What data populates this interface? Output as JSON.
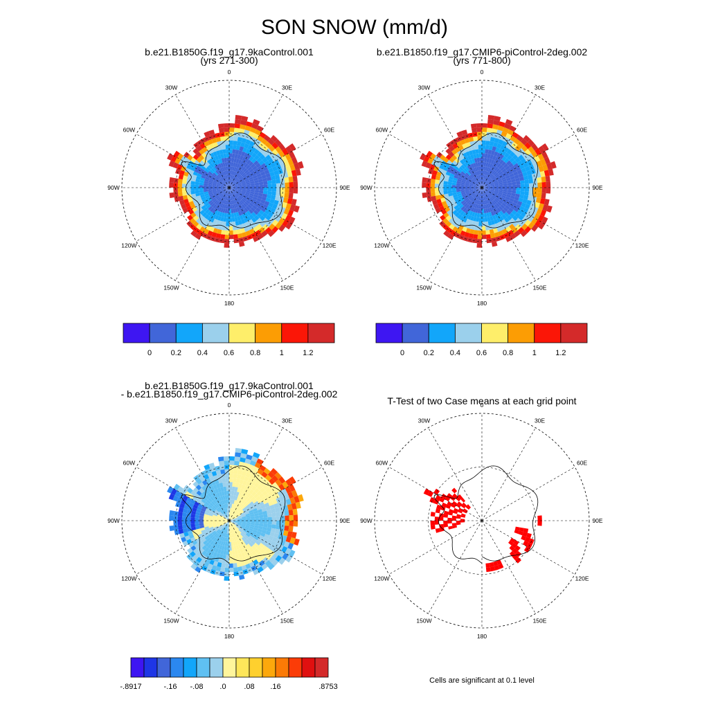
{
  "chart_data": [
    {
      "type": "polar-map",
      "figure_title": "SON SNOW (mm/d)",
      "panel": "case1",
      "title_lines": [
        "b.e21.B1850G.f19_g17.9kaControl.001",
        "(yrs 271-300)"
      ],
      "longitude_labels": [
        "0",
        "30E",
        "60E",
        "90E",
        "120E",
        "150E",
        "180",
        "150W",
        "120W",
        "90W",
        "60W",
        "30W"
      ],
      "colorbar": {
        "tick_labels": [
          "0",
          "0.2",
          "0.4",
          "0.6",
          "0.8",
          "1",
          "1.2"
        ],
        "colors": [
          "#3e16f2",
          "#4166d9",
          "#12a6fa",
          "#9bd0ec",
          "#feee6a",
          "#fc9d04",
          "#fb1607",
          "#d42a2a"
        ]
      }
    },
    {
      "type": "polar-map",
      "panel": "case2",
      "title_lines": [
        "b.e21.B1850.f19_g17.CMIP6-piControl-2deg.002",
        "(yrs 771-800)"
      ],
      "longitude_labels": [
        "0",
        "30E",
        "60E",
        "90E",
        "120E",
        "150E",
        "180",
        "150W",
        "120W",
        "90W",
        "60W",
        "30W"
      ],
      "colorbar": {
        "tick_labels": [
          "0",
          "0.2",
          "0.4",
          "0.6",
          "0.8",
          "1",
          "1.2"
        ],
        "colors": [
          "#3e16f2",
          "#4166d9",
          "#12a6fa",
          "#9bd0ec",
          "#feee6a",
          "#fc9d04",
          "#fb1607",
          "#d42a2a"
        ]
      }
    },
    {
      "type": "polar-map",
      "panel": "difference",
      "title_lines": [
        "b.e21.B1850G.f19_g17.9kaControl.001",
        "- b.e21.B1850.f19_g17.CMIP6-piControl-2deg.002"
      ],
      "longitude_labels": [
        "0",
        "30E",
        "60E",
        "90E",
        "120E",
        "150E",
        "180",
        "150W",
        "120W",
        "90W",
        "60W",
        "30W"
      ],
      "colorbar": {
        "tick_labels": [
          "-.8917",
          "-.16",
          "-.08",
          ".0",
          ".08",
          ".16",
          ".8753"
        ],
        "colors": [
          "#3e16f2",
          "#1e36e6",
          "#4166d9",
          "#2b88f0",
          "#12a6fa",
          "#5fc0f2",
          "#9bd0ec",
          "#fff59c",
          "#fee65a",
          "#fed02e",
          "#fca80c",
          "#fb7a06",
          "#fb3c07",
          "#e01010",
          "#d42a2a"
        ]
      }
    },
    {
      "type": "polar-map",
      "panel": "ttest",
      "title_lines": [
        "T-Test of two Case means at each grid point"
      ],
      "longitude_labels": [
        "0",
        "30E",
        "60E",
        "90E",
        "120E",
        "150E",
        "180",
        "150W",
        "120W",
        "90W",
        "60W",
        "30W"
      ],
      "caption": "Cells are significant at 0.1 level",
      "significant_color": "#ff0000"
    }
  ]
}
